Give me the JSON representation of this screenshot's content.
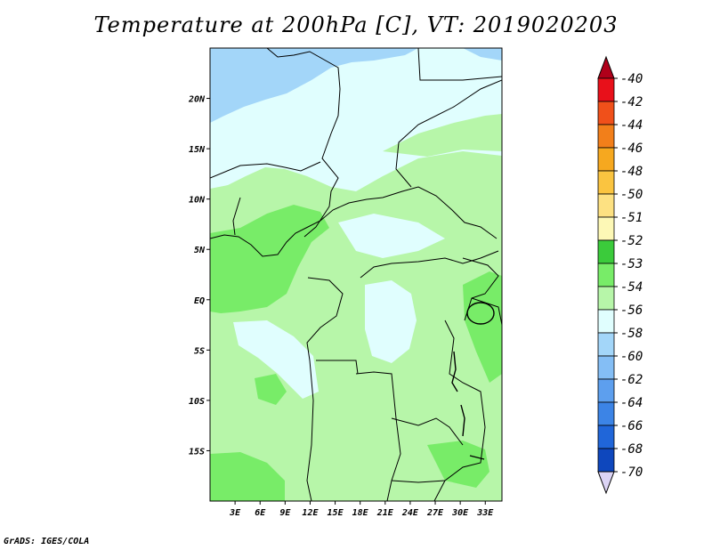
{
  "title": "Temperature at 200hPa [C], VT: 2019020203",
  "credit": "GrADS: IGES/COLA",
  "map": {
    "lon_range": [
      0,
      35
    ],
    "lat_range": [
      -20,
      25
    ],
    "lon_ticks": [
      {
        "label": "3E",
        "lon": 3
      },
      {
        "label": "6E",
        "lon": 6
      },
      {
        "label": "9E",
        "lon": 9
      },
      {
        "label": "12E",
        "lon": 12
      },
      {
        "label": "15E",
        "lon": 15
      },
      {
        "label": "18E",
        "lon": 18
      },
      {
        "label": "21E",
        "lon": 21
      },
      {
        "label": "24E",
        "lon": 24
      },
      {
        "label": "27E",
        "lon": 27
      },
      {
        "label": "30E",
        "lon": 30
      },
      {
        "label": "33E",
        "lon": 33
      }
    ],
    "lat_ticks": [
      {
        "label": "20N",
        "lat": 20
      },
      {
        "label": "15N",
        "lat": 15
      },
      {
        "label": "10N",
        "lat": 10
      },
      {
        "label": "5N",
        "lat": 5
      },
      {
        "label": "EQ",
        "lat": 0
      },
      {
        "label": "5S",
        "lat": -5
      },
      {
        "label": "10S",
        "lat": -10
      },
      {
        "label": "15S",
        "lat": -15
      }
    ]
  },
  "colorbar": {
    "levels": [
      {
        "label": "-40",
        "color": "#e8101a"
      },
      {
        "label": "-42",
        "color": "#f0501a"
      },
      {
        "label": "-44",
        "color": "#f27f1a"
      },
      {
        "label": "-46",
        "color": "#f6a81f"
      },
      {
        "label": "-48",
        "color": "#fac440"
      },
      {
        "label": "-50",
        "color": "#fde182"
      },
      {
        "label": "-51",
        "color": "#fdf8b6"
      },
      {
        "label": "-52",
        "color": "#3bcb3b"
      },
      {
        "label": "-53",
        "color": "#78ec68"
      },
      {
        "label": "-54",
        "color": "#b7f6a9"
      },
      {
        "label": "-56",
        "color": "#e0fefe"
      },
      {
        "label": "-58",
        "color": "#a3d6f9"
      },
      {
        "label": "-60",
        "color": "#84bef5"
      },
      {
        "label": "-62",
        "color": "#5d9fee"
      },
      {
        "label": "-64",
        "color": "#3c84e6"
      },
      {
        "label": "-66",
        "color": "#2066d9"
      },
      {
        "label": "-68",
        "color": "#0e47bd"
      },
      {
        "label": "-70",
        "color": "#0a2a97"
      }
    ],
    "over_color": "#b0001a",
    "under_color": "#dcd4f5",
    "bottom_fill": "#0c1a70"
  }
}
